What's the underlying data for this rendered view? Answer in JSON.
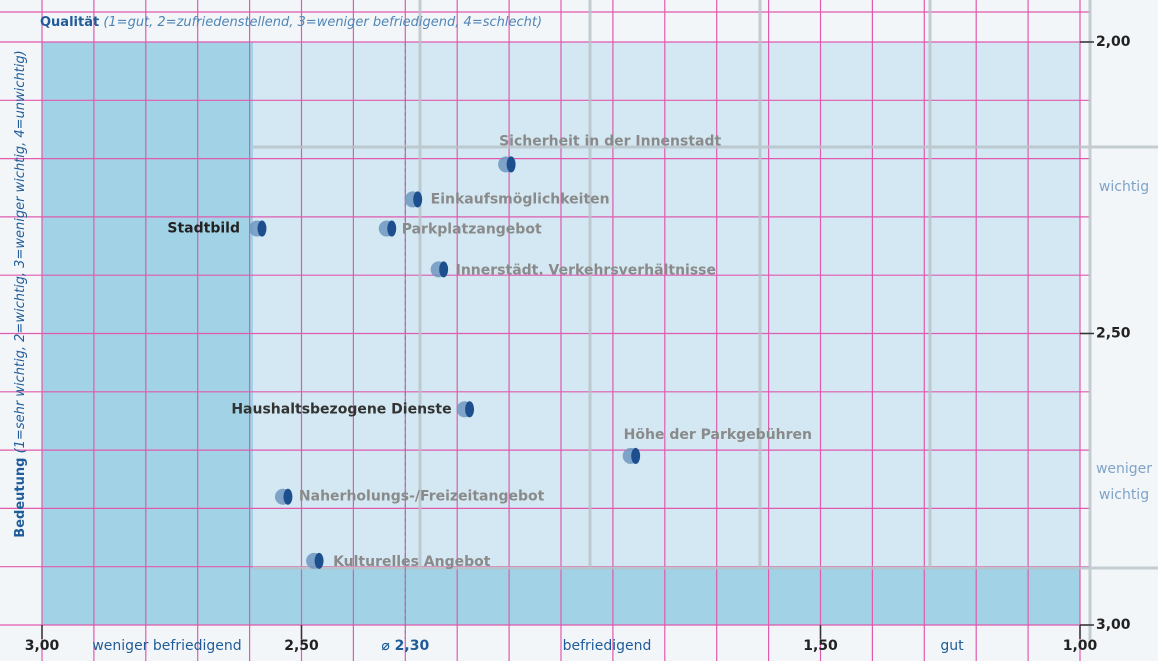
{
  "chart_data": {
    "type": "scatter",
    "title": "Qualität",
    "subtitle": "(1=gut, 2=zufriedenstellend, 3=weniger befriedigend, 4=schlecht)",
    "ylabel_main": "Bedeutung",
    "ylabel_detail": "(1=sehr wichtig, 2=wichtig, 3=weniger wichtig, 4=unwichtig)",
    "labels": [
      "Sicherheit in der Innenstadt",
      "Einkaufsmöglichkeiten",
      "Parkplatzangebot",
      "Stadtbild",
      "Innerstädt. Verkehrsverhältnisse",
      "Haushaltsbezogene Dienste",
      "Höhe der Parkgebühren",
      "Naherholungs-/Freizeitangebot",
      "Kulturelles Angebot"
    ],
    "x": [
      2.1,
      2.28,
      2.33,
      2.58,
      2.23,
      2.18,
      1.86,
      2.53,
      2.47
    ],
    "values": [
      2.21,
      2.27,
      2.32,
      2.32,
      2.39,
      2.63,
      2.71,
      2.78,
      2.89
    ],
    "xlim": [
      3,
      1
    ],
    "ylim": [
      2,
      3
    ],
    "xticks": [
      {
        "value": 3,
        "label": "3,00"
      },
      {
        "value": 2.5,
        "label": "2,50"
      },
      {
        "value": 1.5,
        "label": "1,50"
      },
      {
        "value": 1,
        "label": "1,00"
      }
    ],
    "yticks": [
      {
        "value": 2,
        "label": "2,00"
      },
      {
        "value": 2.5,
        "label": "2,50"
      },
      {
        "value": 3,
        "label": "3,00"
      }
    ],
    "mean": {
      "value": 2.3,
      "label": "⌀ 2,30"
    },
    "x_region_labels": [
      "weniger befriedigend",
      "befriedigend",
      "gut"
    ],
    "y_region_labels": [
      "wichtig",
      "weniger wichtig"
    ],
    "grid": true
  }
}
